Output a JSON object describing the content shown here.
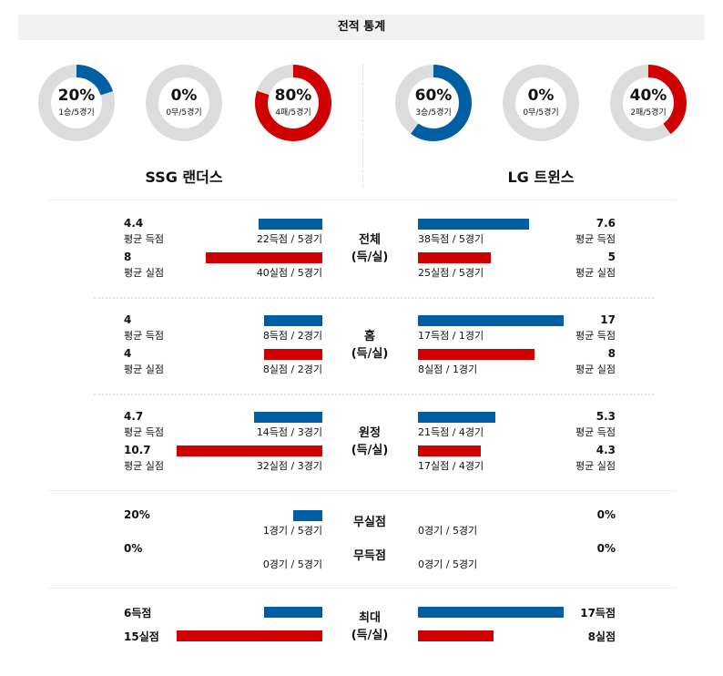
{
  "title": "전적 통계",
  "colors": {
    "blue": "#005ea3",
    "red": "#d10000",
    "ring": "#dcdcdc"
  },
  "teams": [
    {
      "name": "SSG 랜더스",
      "donuts": [
        {
          "pct_label": "20%",
          "value": 20,
          "sub": "1승/5경기",
          "color": "blue"
        },
        {
          "pct_label": "0%",
          "value": 0,
          "sub": "0무/5경기",
          "color": "blue"
        },
        {
          "pct_label": "80%",
          "value": 80,
          "sub": "4패/5경기",
          "color": "red"
        }
      ]
    },
    {
      "name": "LG 트윈스",
      "donuts": [
        {
          "pct_label": "60%",
          "value": 60,
          "sub": "3승/5경기",
          "color": "blue"
        },
        {
          "pct_label": "0%",
          "value": 0,
          "sub": "0무/5경기",
          "color": "blue"
        },
        {
          "pct_label": "40%",
          "value": 40,
          "sub": "2패/5경기",
          "color": "red"
        }
      ]
    }
  ],
  "sections": [
    {
      "label1": "전체",
      "label2": "(득/실)",
      "rows": [
        {
          "left": {
            "value": "4.4",
            "label": "평균 득점",
            "detail": "22득점 / 5경기",
            "bar_pct": 44
          },
          "right": {
            "value": "7.6",
            "label": "평균 득점",
            "detail": "38득점 / 5경기",
            "bar_pct": 76
          },
          "color": "blue"
        },
        {
          "left": {
            "value": "8",
            "label": "평균 실점",
            "detail": "40실점 / 5경기",
            "bar_pct": 80
          },
          "right": {
            "value": "5",
            "label": "평균 실점",
            "detail": "25실점 / 5경기",
            "bar_pct": 50
          },
          "color": "red"
        }
      ]
    },
    {
      "label1": "홈",
      "label2": "(득/실)",
      "rows": [
        {
          "left": {
            "value": "4",
            "label": "평균 득점",
            "detail": "8득점 / 2경기",
            "bar_pct": 40
          },
          "right": {
            "value": "17",
            "label": "평균 득점",
            "detail": "17득점 / 1경기",
            "bar_pct": 100
          },
          "color": "blue"
        },
        {
          "left": {
            "value": "4",
            "label": "평균 실점",
            "detail": "8실점 / 2경기",
            "bar_pct": 40
          },
          "right": {
            "value": "8",
            "label": "평균 실점",
            "detail": "8실점 / 1경기",
            "bar_pct": 80
          },
          "color": "red"
        }
      ]
    },
    {
      "label1": "원정",
      "label2": "(득/실)",
      "rows": [
        {
          "left": {
            "value": "4.7",
            "label": "평균 득점",
            "detail": "14득점 / 3경기",
            "bar_pct": 47
          },
          "right": {
            "value": "5.3",
            "label": "평균 득점",
            "detail": "21득점 / 4경기",
            "bar_pct": 53
          },
          "color": "blue"
        },
        {
          "left": {
            "value": "10.7",
            "label": "평균 실점",
            "detail": "32실점 / 3경기",
            "bar_pct": 100
          },
          "right": {
            "value": "4.3",
            "label": "평균 실점",
            "detail": "17실점 / 4경기",
            "bar_pct": 43
          },
          "color": "red"
        }
      ]
    }
  ],
  "zero": [
    {
      "label": "무실점",
      "left": {
        "value": "20%",
        "detail": "1경기 / 5경기",
        "bar_pct": 20
      },
      "right": {
        "value": "0%",
        "detail": "0경기 / 5경기",
        "bar_pct": 0
      }
    },
    {
      "label": "무득점",
      "left": {
        "value": "0%",
        "detail": "0경기 / 5경기",
        "bar_pct": 0
      },
      "right": {
        "value": "0%",
        "detail": "0경기 / 5경기",
        "bar_pct": 0
      }
    }
  ],
  "max": {
    "label1": "최대",
    "label2": "(득/실)",
    "rows": [
      {
        "left": {
          "value": "6득점",
          "bar_pct": 40
        },
        "right": {
          "value": "17득점",
          "bar_pct": 100
        },
        "color": "blue"
      },
      {
        "left": {
          "value": "15실점",
          "bar_pct": 100
        },
        "right": {
          "value": "8실점",
          "bar_pct": 52
        },
        "color": "red"
      }
    ]
  }
}
